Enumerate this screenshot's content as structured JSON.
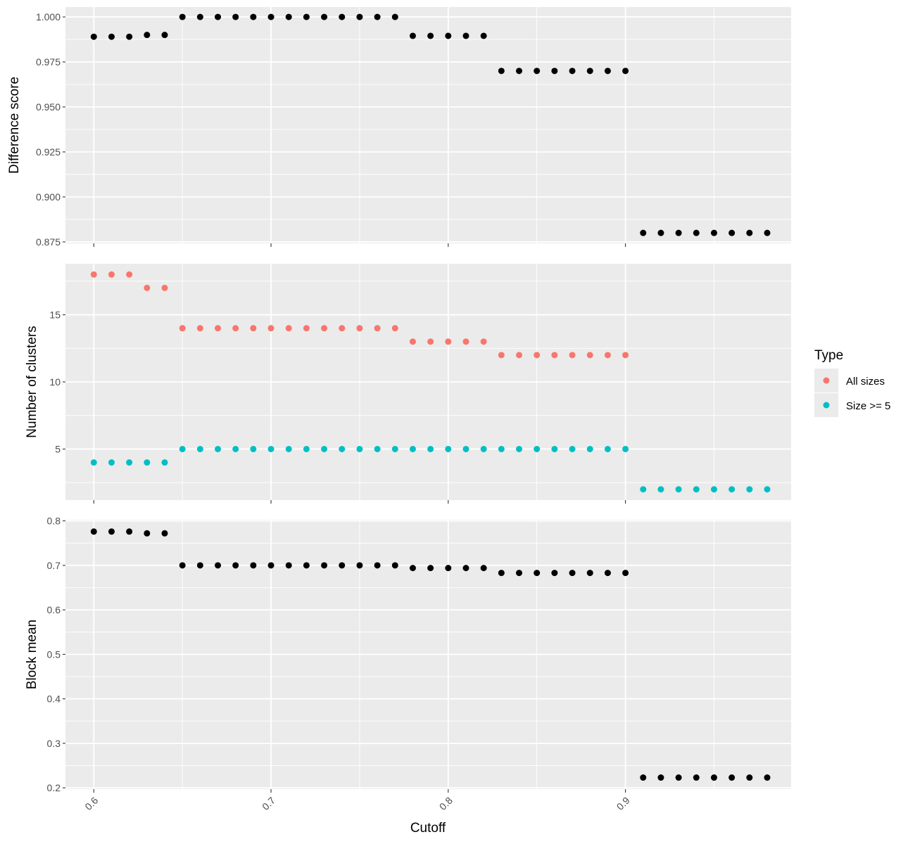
{
  "chart_data": {
    "type": "scatter",
    "xlabel": "Cutoff",
    "x_ticks": [
      "0.6",
      "0.7",
      "0.8",
      "0.9"
    ],
    "xlim": [
      0.584,
      0.9935
    ],
    "x": [
      0.6,
      0.61,
      0.62,
      0.63,
      0.64,
      0.65,
      0.66,
      0.67,
      0.68,
      0.69,
      0.7,
      0.71,
      0.72,
      0.73,
      0.74,
      0.75,
      0.76,
      0.77,
      0.78,
      0.79,
      0.8,
      0.81,
      0.82,
      0.83,
      0.84,
      0.85,
      0.86,
      0.87,
      0.88,
      0.89,
      0.9,
      0.91,
      0.92,
      0.93,
      0.94,
      0.95,
      0.96,
      0.97,
      0.98
    ],
    "panels": [
      {
        "ylabel": "Difference score",
        "ylim": [
          0.8742,
          1.0055
        ],
        "y_ticks": [
          "0.875",
          "0.900",
          "0.925",
          "0.950",
          "0.975",
          "1.000"
        ],
        "grid": true,
        "series": [
          {
            "color": "#000000",
            "values": [
              0.989,
              0.989,
              0.989,
              0.99,
              0.99,
              1.0,
              1.0,
              1.0,
              1.0,
              1.0,
              1.0,
              1.0,
              1.0,
              1.0,
              1.0,
              1.0,
              1.0,
              1.0,
              0.9895,
              0.9895,
              0.9895,
              0.9895,
              0.9895,
              0.97,
              0.97,
              0.97,
              0.97,
              0.97,
              0.97,
              0.97,
              0.97,
              0.88,
              0.88,
              0.88,
              0.88,
              0.88,
              0.88,
              0.88,
              0.88
            ]
          }
        ]
      },
      {
        "ylabel": "Number of clusters",
        "ylim": [
          1.2,
          18.8
        ],
        "y_ticks": [
          "5",
          "10",
          "15"
        ],
        "grid": true,
        "series": [
          {
            "name": "All sizes",
            "color": "#F8766D",
            "values": [
              18,
              18,
              18,
              17,
              17,
              14,
              14,
              14,
              14,
              14,
              14,
              14,
              14,
              14,
              14,
              14,
              14,
              14,
              13,
              13,
              13,
              13,
              13,
              12,
              12,
              12,
              12,
              12,
              12,
              12,
              12,
              null,
              null,
              null,
              null,
              null,
              null,
              null,
              null
            ]
          },
          {
            "name": "Size >= 5",
            "color": "#00BFC4",
            "values": [
              4,
              4,
              4,
              4,
              4,
              5,
              5,
              5,
              5,
              5,
              5,
              5,
              5,
              5,
              5,
              5,
              5,
              5,
              5,
              5,
              5,
              5,
              5,
              5,
              5,
              5,
              5,
              5,
              5,
              5,
              5,
              2,
              2,
              2,
              2,
              2,
              2,
              2,
              2
            ]
          }
        ]
      },
      {
        "ylabel": "Block mean",
        "ylim": [
          0.197,
          0.8025
        ],
        "y_ticks": [
          "0.2",
          "0.3",
          "0.4",
          "0.5",
          "0.6",
          "0.7",
          "0.8"
        ],
        "grid": true,
        "series": [
          {
            "color": "#000000",
            "values": [
              0.776,
              0.776,
              0.776,
              0.772,
              0.772,
              0.7,
              0.7,
              0.7,
              0.7,
              0.7,
              0.7,
              0.7,
              0.7,
              0.7,
              0.7,
              0.7,
              0.7,
              0.7,
              0.694,
              0.694,
              0.694,
              0.694,
              0.694,
              0.683,
              0.683,
              0.683,
              0.683,
              0.683,
              0.683,
              0.683,
              0.683,
              0.223,
              0.223,
              0.223,
              0.223,
              0.223,
              0.223,
              0.223,
              0.223
            ]
          }
        ]
      }
    ],
    "legend": {
      "title": "Type",
      "position": "right",
      "items": [
        {
          "label": "All sizes",
          "color": "#F8766D"
        },
        {
          "label": "Size >= 5",
          "color": "#00BFC4"
        }
      ]
    }
  }
}
